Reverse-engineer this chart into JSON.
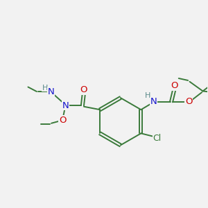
{
  "bg_color": "#f2f2f2",
  "bond_color": "#3a7a3a",
  "atom_colors": {
    "N": "#1414cc",
    "O": "#cc0000",
    "Cl": "#3a7a3a",
    "H": "#5a8a8a",
    "C": "#3a7a3a"
  },
  "font_size": 8.5,
  "fig_size": [
    3.0,
    3.0
  ],
  "dpi": 100
}
